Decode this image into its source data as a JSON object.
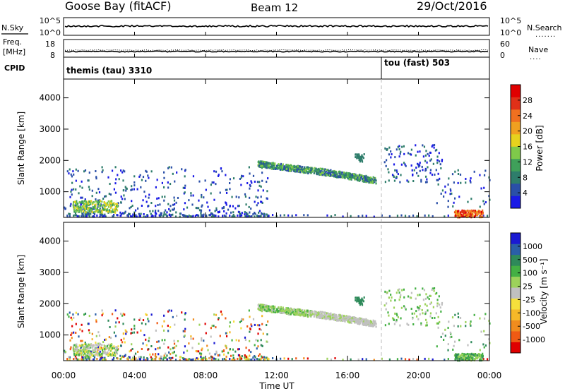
{
  "header": {
    "station": "Goose Bay (fitACF)",
    "beam": "Beam 12",
    "date": "29/Oct/2016"
  },
  "strips": {
    "nsky_label": "N.Sky",
    "nsky_ticks": [
      "10^5",
      "10^0"
    ],
    "nsearch_label": "N.Search",
    "nsearch_ticks": [
      "10^5",
      "10^0"
    ],
    "freq_label": "Freq.",
    "freq_unit": "[MHz]",
    "freq_ticks": [
      "18",
      "8"
    ],
    "nave_label": "Nave",
    "nave_ticks": [
      "60",
      "0"
    ],
    "cpid_label": "CPID",
    "cpid_segments": [
      "themis (tau) 3310",
      "tou (fast) 503"
    ]
  },
  "colors": {
    "power_scale": [
      "#1a1ae6",
      "#2a4fa8",
      "#2e7d6b",
      "#3fa05a",
      "#7fc94a",
      "#e6d21e",
      "#f0a020",
      "#f07020",
      "#e03018",
      "#e00000"
    ],
    "velocity_scale": [
      "#e00000",
      "#f05a14",
      "#f08c1e",
      "#f5b828",
      "#f5e03c",
      "#c0c0c0",
      "#9cd25a",
      "#44b044",
      "#2e8a5a",
      "#2a5fa8",
      "#1a1ad2"
    ]
  },
  "chart_data": [
    {
      "type": "heatmap",
      "title": "Power",
      "xlabel": "",
      "ylabel": "Slant Range [km]",
      "xlim": [
        0,
        24
      ],
      "ylim": [
        180,
        4600
      ],
      "yticks": [
        "1000",
        "2000",
        "3000",
        "4000"
      ],
      "colorbar_label": "Power [dB]",
      "colorbar_ticks": [
        "4",
        "8",
        "12",
        "16",
        "20",
        "24",
        "28"
      ],
      "features": [
        {
          "t_start": 10.9,
          "t_end": 17.6,
          "range_start": 1880,
          "range_end": 1420,
          "level": "12-16 dB"
        },
        {
          "t_start": 0.5,
          "t_end": 3.0,
          "range_start": 350,
          "range_end": 700,
          "level": "12-20 dB"
        },
        {
          "t_start": 22.0,
          "t_end": 23.6,
          "range_start": 180,
          "range_end": 400,
          "level": "24-32 dB"
        }
      ]
    },
    {
      "type": "heatmap",
      "title": "Velocity",
      "xlabel": "Time UT",
      "ylabel": "Slant Range [km]",
      "xlim": [
        0,
        24
      ],
      "ylim": [
        180,
        4600
      ],
      "xticks": [
        "00:00",
        "04:00",
        "08:00",
        "12:00",
        "16:00",
        "20:00",
        "00:00"
      ],
      "yticks": [
        "1000",
        "2000",
        "3000",
        "4000"
      ],
      "colorbar_label": "Velocity [m s⁻¹]",
      "colorbar_ticks": [
        "1000",
        "500",
        "100",
        "25",
        "-25",
        "-100",
        "-500",
        "-1000"
      ],
      "features": [
        {
          "t_start": 10.9,
          "t_end": 17.6,
          "range_start": 1880,
          "range_end": 1420,
          "level": "25 to 100 m/s"
        },
        {
          "t_start": 0.5,
          "t_end": 3.0,
          "range_start": 350,
          "range_end": 700,
          "level": "-25 to 100 m/s"
        }
      ]
    }
  ]
}
